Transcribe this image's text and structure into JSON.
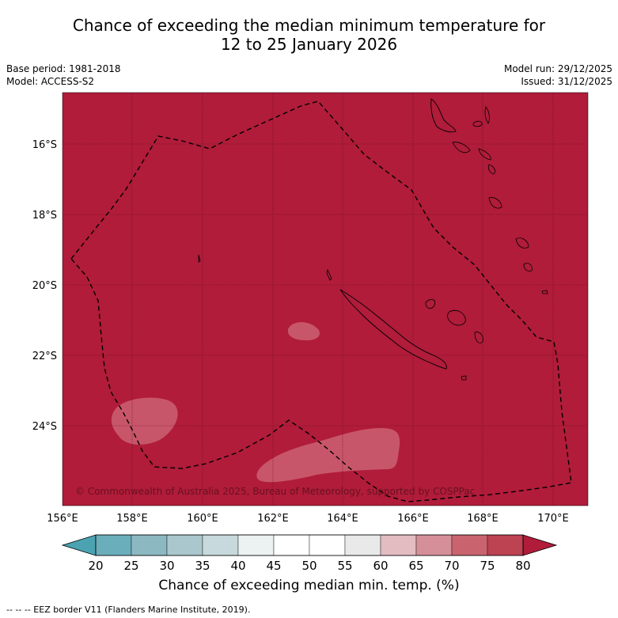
{
  "title_line1": "Chance of exceeding the median minimum temperature for",
  "title_line2": "12 to 25 January 2026",
  "base_period": "Base period: 1981-2018",
  "model": "Model: ACCESS-S2",
  "model_run": "Model run: 29/12/2025",
  "issued": "Issued: 31/12/2025",
  "copyright": "© Commonwealth of Australia 2025, Bureau of Meteorology, supported by COSPPac",
  "colors": {
    "high": "#b01c3a",
    "mid_high": "#c8566a",
    "low_light": "#ffffff"
  },
  "lat_labels": [
    "16°S",
    "18°S",
    "20°S",
    "22°S",
    "24°S"
  ],
  "lon_labels": [
    "156°E",
    "158°E",
    "160°E",
    "162°E",
    "164°E",
    "166°E",
    "168°E",
    "170°E"
  ],
  "colorbar": {
    "title": "Chance of exceeding median min. temp. (%)",
    "ticks": [
      "20",
      "25",
      "30",
      "35",
      "40",
      "45",
      "50",
      "55",
      "60",
      "65",
      "70",
      "75",
      "80"
    ],
    "colors": [
      "#6aaebc",
      "#8cb8c2",
      "#a9c7cc",
      "#c7d9dc",
      "#ecf1f2",
      "#ffffff",
      "#ffffff",
      "#e9e9e9",
      "#e2bcc0",
      "#d58f98",
      "#c9646f",
      "#bd4252"
    ],
    "low_extend": "#4ba3b2",
    "high_extend": "#b01c3a"
  },
  "footer": "--  --  -- EEZ border V11 (Flanders Marine Institute, 2019)."
}
